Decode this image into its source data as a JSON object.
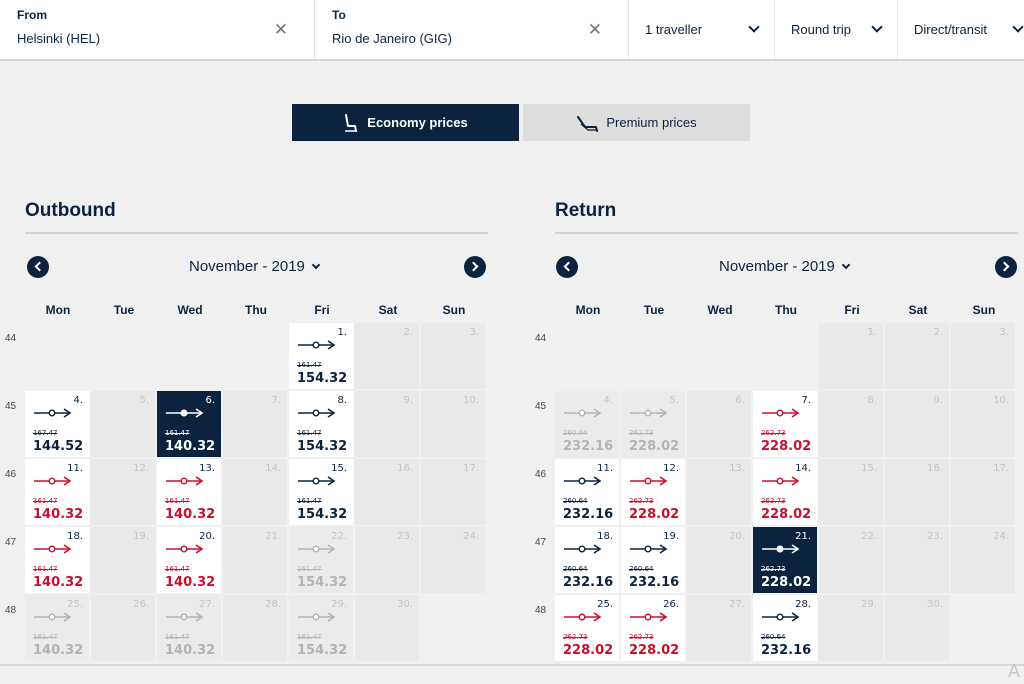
{
  "search": {
    "from_label": "From",
    "from_value": "Helsinki (HEL)",
    "to_label": "To",
    "to_value": "Rio de Janeiro (GIG)",
    "clear_glyph": "✕",
    "travellers": "1 traveller",
    "trip_type": "Round trip",
    "route_type": "Direct/transit"
  },
  "price_toggle": {
    "economy_label": "Economy prices",
    "premium_label": "Premium prices",
    "selected": "economy"
  },
  "colors": {
    "navy": "#0c2340",
    "red": "#c8102e",
    "disabled": "#b4b4b4",
    "selected_bg": "#0c2340"
  },
  "weekdays": [
    "Mon",
    "Tue",
    "Wed",
    "Thu",
    "Fri",
    "Sat",
    "Sun"
  ],
  "outbound": {
    "title": "Outbound",
    "month_label": "November - 2019",
    "weeks": [
      {
        "week": "44",
        "days": [
          {
            "day": "",
            "state": "empty"
          },
          {
            "day": "",
            "state": "empty"
          },
          {
            "day": "",
            "state": "empty"
          },
          {
            "day": "",
            "state": "empty"
          },
          {
            "day": "1.",
            "state": "available",
            "old": "161.47",
            "price": "154.32",
            "tone": "navy"
          },
          {
            "day": "2.",
            "state": "unavailable"
          },
          {
            "day": "3.",
            "state": "unavailable"
          }
        ]
      },
      {
        "week": "45",
        "days": [
          {
            "day": "4.",
            "state": "available",
            "old": "167.47",
            "price": "144.52",
            "tone": "navy"
          },
          {
            "day": "5.",
            "state": "unavailable"
          },
          {
            "day": "6.",
            "state": "selected",
            "old": "161.47",
            "price": "140.32",
            "tone": "navy"
          },
          {
            "day": "7.",
            "state": "unavailable"
          },
          {
            "day": "8.",
            "state": "available",
            "old": "161.47",
            "price": "154.32",
            "tone": "navy"
          },
          {
            "day": "9.",
            "state": "unavailable"
          },
          {
            "day": "10.",
            "state": "unavailable"
          }
        ]
      },
      {
        "week": "46",
        "days": [
          {
            "day": "11.",
            "state": "available",
            "old": "161.47",
            "price": "140.32",
            "tone": "red"
          },
          {
            "day": "12.",
            "state": "unavailable"
          },
          {
            "day": "13.",
            "state": "available",
            "old": "161.47",
            "price": "140.32",
            "tone": "red"
          },
          {
            "day": "14.",
            "state": "unavailable"
          },
          {
            "day": "15.",
            "state": "available",
            "old": "161.47",
            "price": "154.32",
            "tone": "navy"
          },
          {
            "day": "16.",
            "state": "unavailable"
          },
          {
            "day": "17.",
            "state": "unavailable"
          }
        ]
      },
      {
        "week": "47",
        "days": [
          {
            "day": "18.",
            "state": "available",
            "old": "161.47",
            "price": "140.32",
            "tone": "red"
          },
          {
            "day": "19.",
            "state": "unavailable"
          },
          {
            "day": "20.",
            "state": "available",
            "old": "161.47",
            "price": "140.32",
            "tone": "red"
          },
          {
            "day": "21.",
            "state": "unavailable"
          },
          {
            "day": "22.",
            "state": "disabled",
            "old": "161.47",
            "price": "154.32",
            "tone": "grey"
          },
          {
            "day": "23.",
            "state": "unavailable"
          },
          {
            "day": "24.",
            "state": "unavailable"
          }
        ]
      },
      {
        "week": "48",
        "days": [
          {
            "day": "25.",
            "state": "disabled",
            "old": "161.47",
            "price": "140.32",
            "tone": "grey"
          },
          {
            "day": "26.",
            "state": "unavailable"
          },
          {
            "day": "27.",
            "state": "disabled",
            "old": "161.47",
            "price": "140.32",
            "tone": "grey"
          },
          {
            "day": "28.",
            "state": "unavailable"
          },
          {
            "day": "29.",
            "state": "disabled",
            "old": "161.47",
            "price": "154.32",
            "tone": "grey"
          },
          {
            "day": "30.",
            "state": "unavailable"
          },
          {
            "day": "",
            "state": "empty"
          }
        ]
      }
    ]
  },
  "return": {
    "title": "Return",
    "month_label": "November - 2019",
    "weeks": [
      {
        "week": "44",
        "days": [
          {
            "day": "",
            "state": "empty"
          },
          {
            "day": "",
            "state": "empty"
          },
          {
            "day": "",
            "state": "empty"
          },
          {
            "day": "",
            "state": "empty"
          },
          {
            "day": "1.",
            "state": "unavailable"
          },
          {
            "day": "2.",
            "state": "unavailable"
          },
          {
            "day": "3.",
            "state": "unavailable"
          }
        ]
      },
      {
        "week": "45",
        "days": [
          {
            "day": "4.",
            "state": "disabled",
            "old": "260.64",
            "price": "232.16",
            "tone": "grey"
          },
          {
            "day": "5.",
            "state": "disabled",
            "old": "262.73",
            "price": "228.02",
            "tone": "grey"
          },
          {
            "day": "6.",
            "state": "unavailable"
          },
          {
            "day": "7.",
            "state": "available",
            "old": "262.73",
            "price": "228.02",
            "tone": "red"
          },
          {
            "day": "8.",
            "state": "unavailable"
          },
          {
            "day": "9.",
            "state": "unavailable"
          },
          {
            "day": "10.",
            "state": "unavailable"
          }
        ]
      },
      {
        "week": "46",
        "days": [
          {
            "day": "11.",
            "state": "available",
            "old": "260.64",
            "price": "232.16",
            "tone": "navy"
          },
          {
            "day": "12.",
            "state": "available",
            "old": "262.73",
            "price": "228.02",
            "tone": "red"
          },
          {
            "day": "13.",
            "state": "unavailable"
          },
          {
            "day": "14.",
            "state": "available",
            "old": "262.73",
            "price": "228.02",
            "tone": "red"
          },
          {
            "day": "15.",
            "state": "unavailable"
          },
          {
            "day": "16.",
            "state": "unavailable"
          },
          {
            "day": "17.",
            "state": "unavailable"
          }
        ]
      },
      {
        "week": "47",
        "days": [
          {
            "day": "18.",
            "state": "available",
            "old": "260.64",
            "price": "232.16",
            "tone": "navy"
          },
          {
            "day": "19.",
            "state": "available",
            "old": "260.64",
            "price": "232.16",
            "tone": "navy"
          },
          {
            "day": "20.",
            "state": "unavailable"
          },
          {
            "day": "21.",
            "state": "selected",
            "old": "262.73",
            "price": "228.02",
            "tone": "navy"
          },
          {
            "day": "22.",
            "state": "unavailable"
          },
          {
            "day": "23.",
            "state": "unavailable"
          },
          {
            "day": "24.",
            "state": "unavailable"
          }
        ]
      },
      {
        "week": "48",
        "days": [
          {
            "day": "25.",
            "state": "available",
            "old": "262.73",
            "price": "228.02",
            "tone": "red"
          },
          {
            "day": "26.",
            "state": "available",
            "old": "262.73",
            "price": "228.02",
            "tone": "red"
          },
          {
            "day": "27.",
            "state": "unavailable"
          },
          {
            "day": "28.",
            "state": "available",
            "old": "260.64",
            "price": "232.16",
            "tone": "navy"
          },
          {
            "day": "29.",
            "state": "unavailable"
          },
          {
            "day": "30.",
            "state": "unavailable"
          },
          {
            "day": "",
            "state": "empty"
          }
        ]
      }
    ]
  },
  "corner_glyph": "A"
}
